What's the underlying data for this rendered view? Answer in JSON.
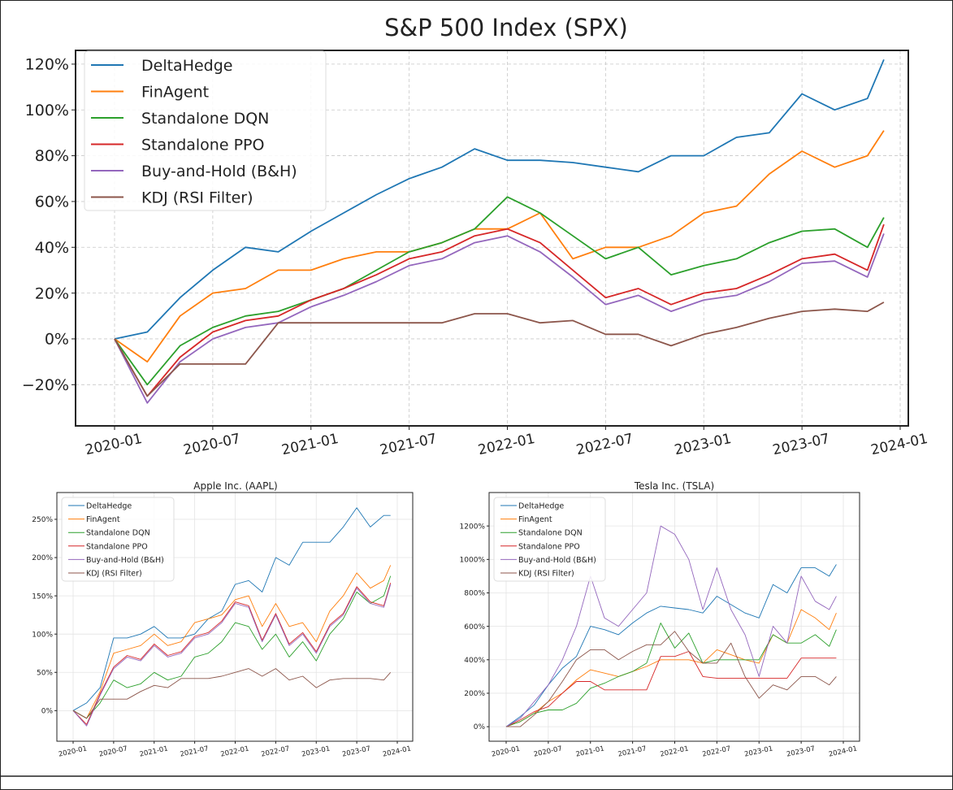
{
  "x": [
    "2020-01",
    "2020-03",
    "2020-05",
    "2020-07",
    "2020-09",
    "2020-11",
    "2021-01",
    "2021-03",
    "2021-05",
    "2021-07",
    "2021-09",
    "2021-11",
    "2022-01",
    "2022-03",
    "2022-05",
    "2022-07",
    "2022-09",
    "2022-11",
    "2023-01",
    "2023-03",
    "2023-05",
    "2023-07",
    "2023-09",
    "2023-11",
    "2023-12"
  ],
  "colors": {
    "DeltaHedge": "#1f77b4",
    "FinAgent": "#ff7f0e",
    "Standalone DQN": "#2ca02c",
    "Standalone PPO": "#d62728",
    "Buy-and-Hold (B&H)": "#9467bd",
    "KDJ (RSI Filter)": "#8c564b"
  },
  "chart_data": [
    {
      "type": "line",
      "title": "S&P 500 Index (SPX)",
      "xlabel": "",
      "ylabel": "",
      "xticks": [
        "2020-01",
        "2020-07",
        "2021-01",
        "2021-07",
        "2022-01",
        "2022-07",
        "2023-01",
        "2023-07",
        "2024-01"
      ],
      "yticks": [
        -20,
        0,
        20,
        40,
        60,
        80,
        100,
        120
      ],
      "ytick_labels": [
        "−20%",
        "0%",
        "20%",
        "40%",
        "60%",
        "80%",
        "100%",
        "120%"
      ],
      "ylim": [
        -38,
        126
      ],
      "grid": true,
      "legend": "top-left",
      "series": [
        {
          "name": "DeltaHedge",
          "values": [
            0,
            3,
            18,
            30,
            40,
            38,
            47,
            55,
            63,
            70,
            75,
            83,
            78,
            78,
            77,
            75,
            73,
            80,
            80,
            88,
            90,
            107,
            100,
            105,
            122
          ]
        },
        {
          "name": "FinAgent",
          "values": [
            0,
            -10,
            10,
            20,
            22,
            30,
            30,
            35,
            38,
            38,
            42,
            48,
            48,
            55,
            35,
            40,
            40,
            45,
            55,
            58,
            72,
            82,
            75,
            80,
            91
          ]
        },
        {
          "name": "Standalone DQN",
          "values": [
            0,
            -20,
            -3,
            5,
            10,
            12,
            17,
            22,
            30,
            38,
            42,
            48,
            62,
            55,
            45,
            35,
            40,
            28,
            32,
            35,
            42,
            47,
            48,
            40,
            53
          ]
        },
        {
          "name": "Standalone PPO",
          "values": [
            0,
            -25,
            -8,
            3,
            8,
            10,
            17,
            22,
            28,
            35,
            38,
            45,
            48,
            42,
            30,
            18,
            22,
            15,
            20,
            22,
            28,
            35,
            37,
            30,
            50
          ]
        },
        {
          "name": "Buy-and-Hold (B&H)",
          "values": [
            0,
            -28,
            -10,
            0,
            5,
            7,
            14,
            19,
            25,
            32,
            35,
            42,
            45,
            38,
            27,
            15,
            19,
            12,
            17,
            19,
            25,
            33,
            34,
            27,
            46
          ]
        },
        {
          "name": "KDJ (RSI Filter)",
          "values": [
            0,
            -25,
            -11,
            -11,
            -11,
            7,
            7,
            7,
            7,
            7,
            7,
            11,
            11,
            7,
            8,
            2,
            2,
            -3,
            2,
            5,
            9,
            12,
            13,
            12,
            16
          ]
        }
      ]
    },
    {
      "type": "line",
      "title": "Apple Inc. (AAPL)",
      "xticks": [
        "2020-01",
        "2020-07",
        "2021-01",
        "2021-07",
        "2022-01",
        "2022-07",
        "2023-01",
        "2023-07",
        "2024-01"
      ],
      "yticks": [
        0,
        50,
        100,
        150,
        200,
        250
      ],
      "ytick_labels": [
        "0%",
        "50%",
        "100%",
        "150%",
        "200%",
        "250%"
      ],
      "ylim": [
        -40,
        285
      ],
      "grid": true,
      "legend": "top-left",
      "series": [
        {
          "name": "DeltaHedge",
          "values": [
            0,
            10,
            30,
            95,
            95,
            100,
            110,
            95,
            95,
            100,
            120,
            130,
            165,
            170,
            155,
            200,
            190,
            220,
            220,
            220,
            240,
            265,
            240,
            255,
            255
          ]
        },
        {
          "name": "FinAgent",
          "values": [
            0,
            -10,
            25,
            75,
            80,
            85,
            100,
            85,
            90,
            115,
            120,
            125,
            145,
            150,
            110,
            140,
            110,
            115,
            90,
            130,
            150,
            180,
            160,
            170,
            190
          ]
        },
        {
          "name": "Standalone DQN",
          "values": [
            0,
            -10,
            10,
            40,
            30,
            35,
            50,
            40,
            45,
            70,
            75,
            90,
            115,
            110,
            80,
            100,
            70,
            90,
            65,
            100,
            120,
            155,
            140,
            150,
            176
          ]
        },
        {
          "name": "Standalone PPO",
          "values": [
            0,
            -18,
            22,
            57,
            72,
            67,
            87,
            72,
            77,
            97,
            102,
            117,
            142,
            137,
            92,
            127,
            87,
            102,
            77,
            112,
            127,
            162,
            142,
            137,
            167
          ]
        },
        {
          "name": "Buy-and-Hold (B&H)",
          "values": [
            0,
            -20,
            20,
            55,
            70,
            65,
            85,
            70,
            75,
            95,
            100,
            115,
            140,
            135,
            90,
            125,
            85,
            100,
            75,
            110,
            125,
            160,
            140,
            135,
            165
          ]
        },
        {
          "name": "KDJ (RSI Filter)",
          "values": [
            0,
            -10,
            15,
            15,
            15,
            25,
            33,
            30,
            42,
            42,
            42,
            45,
            50,
            55,
            45,
            55,
            40,
            45,
            30,
            40,
            42,
            42,
            42,
            40,
            50
          ]
        }
      ]
    },
    {
      "type": "line",
      "title": "Tesla Inc. (TSLA)",
      "xticks": [
        "2020-01",
        "2020-07",
        "2021-01",
        "2021-07",
        "2022-01",
        "2022-07",
        "2023-01",
        "2023-07",
        "2024-01"
      ],
      "yticks": [
        0,
        200,
        400,
        600,
        800,
        1000,
        1200
      ],
      "ytick_labels": [
        "0%",
        "200%",
        "400%",
        "600%",
        "800%",
        "1000%",
        "1200%"
      ],
      "ylim": [
        -87,
        1400
      ],
      "grid": true,
      "legend": "top-left",
      "series": [
        {
          "name": "DeltaHedge",
          "values": [
            0,
            60,
            130,
            250,
            350,
            420,
            600,
            580,
            550,
            620,
            680,
            720,
            710,
            700,
            680,
            780,
            730,
            680,
            650,
            850,
            800,
            950,
            950,
            900,
            970
          ]
        },
        {
          "name": "FinAgent",
          "values": [
            0,
            30,
            80,
            150,
            200,
            280,
            340,
            320,
            300,
            330,
            360,
            400,
            400,
            400,
            380,
            460,
            430,
            400,
            380,
            550,
            500,
            700,
            650,
            580,
            680
          ]
        },
        {
          "name": "Standalone DQN",
          "values": [
            0,
            30,
            80,
            100,
            100,
            140,
            230,
            260,
            300,
            330,
            380,
            620,
            470,
            560,
            380,
            400,
            400,
            400,
            400,
            550,
            500,
            500,
            550,
            480,
            580
          ]
        },
        {
          "name": "Standalone PPO",
          "values": [
            0,
            40,
            90,
            120,
            200,
            270,
            270,
            220,
            220,
            220,
            220,
            420,
            420,
            450,
            300,
            290,
            290,
            290,
            290,
            290,
            290,
            410,
            410,
            410,
            410
          ]
        },
        {
          "name": "Buy-and-Hold (B&H)",
          "values": [
            0,
            50,
            150,
            250,
            400,
            600,
            900,
            650,
            600,
            700,
            800,
            1200,
            1150,
            1000,
            700,
            950,
            700,
            550,
            300,
            600,
            500,
            900,
            750,
            700,
            780
          ]
        },
        {
          "name": "KDJ (RSI Filter)",
          "values": [
            0,
            0,
            70,
            150,
            270,
            400,
            460,
            460,
            400,
            450,
            490,
            490,
            570,
            450,
            380,
            380,
            500,
            300,
            170,
            250,
            220,
            300,
            300,
            250,
            300
          ]
        }
      ]
    }
  ]
}
